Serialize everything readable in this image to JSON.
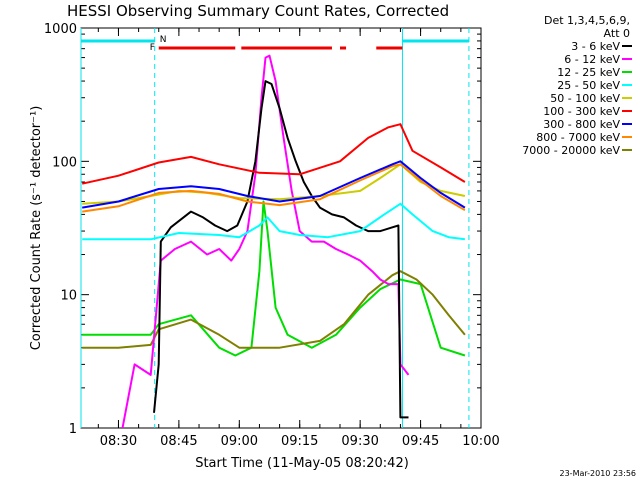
{
  "chart_data": {
    "type": "line",
    "title": "HESSI Observing Summary Count Rates, Corrected",
    "xlabel": "Start Time (11-May-05 08:20:42)",
    "ylabel": "Corrected Count Rate (s⁻¹ detector⁻¹)",
    "yscale": "log",
    "xlim": [
      "08:20:42",
      "10:00:00"
    ],
    "ylim": [
      1,
      1000
    ],
    "x_ticks": [
      "08:30",
      "08:45",
      "09:00",
      "09:15",
      "09:30",
      "09:45",
      "10:00"
    ],
    "y_ticks": [
      {
        "value": 1,
        "label": "1"
      },
      {
        "value": 10,
        "label": "10"
      },
      {
        "value": 100,
        "label": "100"
      },
      {
        "value": 1000,
        "label": "1000"
      }
    ],
    "grid": false,
    "legend_position": "right",
    "legend_header": [
      "Det 1,3,4,5,6,9,",
      "Att 0"
    ],
    "timestamp": "23-Mar-2010 23:56",
    "markers": {
      "night_label": "N",
      "flare_label": "F",
      "night_bars": [
        [
          "08:20:42",
          "08:39:00"
        ],
        [
          "09:40:30",
          "09:57:00"
        ]
      ],
      "flare_bars": [
        [
          "08:40:00",
          "08:59:00"
        ],
        [
          "09:00:30",
          "09:23:00"
        ],
        [
          "09:25:00",
          "09:26:30"
        ],
        [
          "09:34:00",
          "09:40:30"
        ]
      ],
      "night_lines": [
        "08:39:00",
        "09:57:00"
      ],
      "day_lines": [
        "08:20:42",
        "09:40:30"
      ]
    },
    "series": [
      {
        "name": "3 - 6 keV",
        "color": "#000000",
        "points": [
          [
            "08:38:50",
            1.3
          ],
          [
            "08:40:00",
            3
          ],
          [
            "08:40:30",
            25
          ],
          [
            "08:43:00",
            32
          ],
          [
            "08:48:00",
            42
          ],
          [
            "08:51:00",
            38
          ],
          [
            "08:54:00",
            33
          ],
          [
            "08:57:00",
            30
          ],
          [
            "08:59:30",
            33
          ],
          [
            "09:02:00",
            50
          ],
          [
            "09:04:00",
            100
          ],
          [
            "09:05:30",
            250
          ],
          [
            "09:06:30",
            400
          ],
          [
            "09:08:00",
            380
          ],
          [
            "09:10:00",
            250
          ],
          [
            "09:12:00",
            150
          ],
          [
            "09:14:00",
            100
          ],
          [
            "09:16:00",
            70
          ],
          [
            "09:18:00",
            55
          ],
          [
            "09:20:00",
            45
          ],
          [
            "09:23:00",
            40
          ],
          [
            "09:26:00",
            38
          ],
          [
            "09:29:00",
            33
          ],
          [
            "09:32:00",
            30
          ],
          [
            "09:35:00",
            30
          ],
          [
            "09:38:00",
            32
          ],
          [
            "09:39:30",
            33
          ],
          [
            "09:40:00",
            1.2
          ],
          [
            "09:42:00",
            1.2
          ]
        ]
      },
      {
        "name": "6 - 12 keV",
        "color": "#ff00ff",
        "points": [
          [
            "08:31:00",
            1
          ],
          [
            "08:34:00",
            3
          ],
          [
            "08:38:00",
            2.5
          ],
          [
            "08:40:30",
            18
          ],
          [
            "08:44:00",
            22
          ],
          [
            "08:48:00",
            25
          ],
          [
            "08:52:00",
            20
          ],
          [
            "08:55:00",
            22
          ],
          [
            "08:58:00",
            18
          ],
          [
            "09:00:00",
            22
          ],
          [
            "09:02:00",
            30
          ],
          [
            "09:04:00",
            80
          ],
          [
            "09:05:30",
            300
          ],
          [
            "09:06:30",
            600
          ],
          [
            "09:07:30",
            620
          ],
          [
            "09:09:00",
            400
          ],
          [
            "09:11:00",
            150
          ],
          [
            "09:13:00",
            60
          ],
          [
            "09:15:00",
            30
          ],
          [
            "09:18:00",
            25
          ],
          [
            "09:21:00",
            25
          ],
          [
            "09:24:00",
            22
          ],
          [
            "09:27:00",
            20
          ],
          [
            "09:30:00",
            18
          ],
          [
            "09:33:00",
            15
          ],
          [
            "09:35:00",
            13
          ],
          [
            "09:37:00",
            12
          ],
          [
            "09:39:30",
            12
          ],
          [
            "09:40:00",
            3
          ],
          [
            "09:42:00",
            2.5
          ]
        ]
      },
      {
        "name": "12 - 25 keV",
        "color": "#00dd00",
        "points": [
          [
            "08:21:00",
            5
          ],
          [
            "08:30:00",
            5
          ],
          [
            "08:38:00",
            5
          ],
          [
            "08:40:00",
            6
          ],
          [
            "08:48:00",
            7
          ],
          [
            "08:55:00",
            4
          ],
          [
            "08:59:00",
            3.5
          ],
          [
            "09:03:00",
            4
          ],
          [
            "09:05:00",
            15
          ],
          [
            "09:06:00",
            50
          ],
          [
            "09:07:00",
            30
          ],
          [
            "09:09:00",
            8
          ],
          [
            "09:12:00",
            5
          ],
          [
            "09:18:00",
            4
          ],
          [
            "09:24:00",
            5
          ],
          [
            "09:30:00",
            8
          ],
          [
            "09:35:00",
            11
          ],
          [
            "09:40:00",
            13
          ],
          [
            "09:45:00",
            12
          ],
          [
            "09:50:00",
            4
          ],
          [
            "09:56:00",
            3.5
          ]
        ]
      },
      {
        "name": "25 - 50 keV",
        "color": "#00ffff",
        "points": [
          [
            "08:21:00",
            26
          ],
          [
            "08:30:00",
            26
          ],
          [
            "08:38:00",
            26
          ],
          [
            "08:45:00",
            29
          ],
          [
            "08:55:00",
            28
          ],
          [
            "09:00:00",
            27
          ],
          [
            "09:05:00",
            33
          ],
          [
            "09:07:00",
            38
          ],
          [
            "09:10:00",
            30
          ],
          [
            "09:15:00",
            28
          ],
          [
            "09:22:00",
            27
          ],
          [
            "09:30:00",
            30
          ],
          [
            "09:36:00",
            40
          ],
          [
            "09:40:00",
            48
          ],
          [
            "09:43:00",
            40
          ],
          [
            "09:48:00",
            30
          ],
          [
            "09:52:00",
            27
          ],
          [
            "09:56:00",
            26
          ]
        ]
      },
      {
        "name": "50 - 100 keV",
        "color": "#cccc00",
        "points": [
          [
            "08:21:00",
            48
          ],
          [
            "08:30:00",
            50
          ],
          [
            "08:38:00",
            55
          ],
          [
            "08:45:00",
            60
          ],
          [
            "08:52:00",
            58
          ],
          [
            "09:00:00",
            53
          ],
          [
            "09:10:00",
            52
          ],
          [
            "09:20:00",
            55
          ],
          [
            "09:30:00",
            60
          ],
          [
            "09:35:00",
            75
          ],
          [
            "09:40:00",
            95
          ],
          [
            "09:45:00",
            70
          ],
          [
            "09:50:00",
            60
          ],
          [
            "09:56:00",
            55
          ]
        ]
      },
      {
        "name": "100 - 300 keV",
        "color": "#ff0000",
        "points": [
          [
            "08:21:00",
            68
          ],
          [
            "08:30:00",
            78
          ],
          [
            "08:40:00",
            98
          ],
          [
            "08:48:00",
            108
          ],
          [
            "08:55:00",
            95
          ],
          [
            "09:05:00",
            82
          ],
          [
            "09:15:00",
            80
          ],
          [
            "09:25:00",
            100
          ],
          [
            "09:32:00",
            150
          ],
          [
            "09:37:00",
            180
          ],
          [
            "09:40:00",
            190
          ],
          [
            "09:43:00",
            120
          ],
          [
            "09:50:00",
            90
          ],
          [
            "09:56:00",
            70
          ]
        ]
      },
      {
        "name": "300 - 800 keV",
        "color": "#0000ff",
        "points": [
          [
            "08:21:00",
            45
          ],
          [
            "08:30:00",
            50
          ],
          [
            "08:40:00",
            62
          ],
          [
            "08:48:00",
            65
          ],
          [
            "08:55:00",
            62
          ],
          [
            "09:02:00",
            55
          ],
          [
            "09:10:00",
            50
          ],
          [
            "09:20:00",
            55
          ],
          [
            "09:30:00",
            75
          ],
          [
            "09:38:00",
            95
          ],
          [
            "09:40:00",
            100
          ],
          [
            "09:45:00",
            75
          ],
          [
            "09:50:00",
            58
          ],
          [
            "09:56:00",
            45
          ]
        ]
      },
      {
        "name": "800 - 7000 keV",
        "color": "#ff8800",
        "points": [
          [
            "08:21:00",
            42
          ],
          [
            "08:30:00",
            46
          ],
          [
            "08:40:00",
            58
          ],
          [
            "08:48:00",
            60
          ],
          [
            "08:55:00",
            57
          ],
          [
            "09:02:00",
            50
          ],
          [
            "09:10:00",
            47
          ],
          [
            "09:20:00",
            52
          ],
          [
            "09:30:00",
            72
          ],
          [
            "09:38:00",
            92
          ],
          [
            "09:40:00",
            95
          ],
          [
            "09:45:00",
            72
          ],
          [
            "09:50:00",
            55
          ],
          [
            "09:56:00",
            43
          ]
        ]
      },
      {
        "name": "7000 - 20000 keV",
        "color": "#808000",
        "points": [
          [
            "08:21:00",
            4
          ],
          [
            "08:30:00",
            4
          ],
          [
            "08:38:00",
            4.2
          ],
          [
            "08:40:00",
            5.5
          ],
          [
            "08:48:00",
            6.5
          ],
          [
            "08:55:00",
            5
          ],
          [
            "09:00:00",
            4
          ],
          [
            "09:10:00",
            4
          ],
          [
            "09:20:00",
            4.5
          ],
          [
            "09:26:00",
            6
          ],
          [
            "09:32:00",
            10
          ],
          [
            "09:38:00",
            14
          ],
          [
            "09:40:00",
            15
          ],
          [
            "09:44:00",
            13
          ],
          [
            "09:48:00",
            10
          ],
          [
            "09:52:00",
            7
          ],
          [
            "09:56:00",
            5
          ]
        ]
      }
    ]
  }
}
